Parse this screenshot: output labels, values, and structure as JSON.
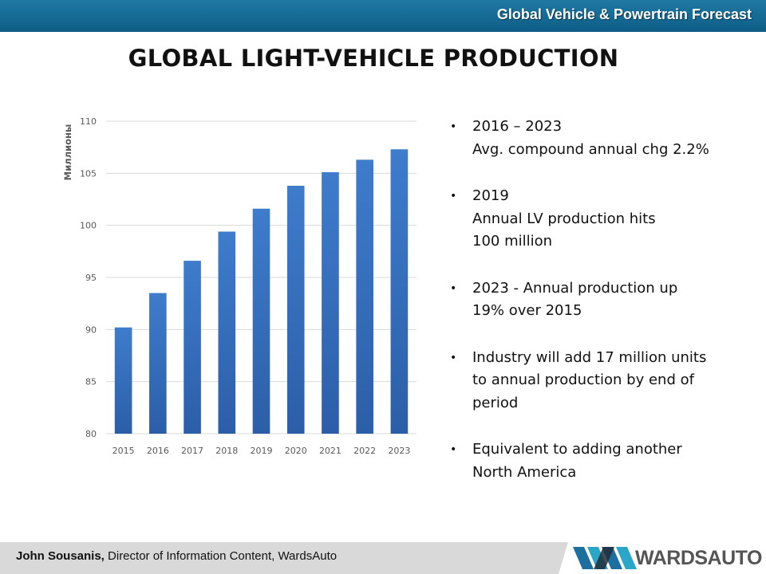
{
  "header": {
    "title": "Global Vehicle & Powertrain Forecast"
  },
  "slide": {
    "title": "GLOBAL LIGHT-VEHICLE PRODUCTION"
  },
  "chart_data": {
    "type": "bar",
    "categories": [
      "2015",
      "2016",
      "2017",
      "2018",
      "2019",
      "2020",
      "2021",
      "2022",
      "2023"
    ],
    "values": [
      90.2,
      93.5,
      96.6,
      99.4,
      101.6,
      103.8,
      105.1,
      106.3,
      107.3
    ],
    "ylabel": "Миллионы",
    "ylim": [
      80,
      110
    ],
    "yticks": [
      80,
      85,
      90,
      95,
      100,
      105,
      110
    ],
    "grid": true,
    "bar_color": "#3a75c4"
  },
  "bullets": [
    {
      "lines": [
        "2016 – 2023",
        "Avg. compound annual chg 2.2%"
      ]
    },
    {
      "lines": [
        "2019",
        "Annual LV production hits",
        "100 million"
      ]
    },
    {
      "lines": [
        "2023 - Annual production up",
        "19% over 2015"
      ]
    },
    {
      "lines": [
        "Industry will add 17 million units",
        "to annual production by end of",
        "period"
      ]
    },
    {
      "lines": [
        "Equivalent to adding another",
        "North America"
      ]
    }
  ],
  "footer": {
    "name": "John Sousanis,",
    "role": " Director of Information Content, WardsAuto"
  },
  "logo": {
    "text": "WARDSAUTO",
    "icon": "wardsauto-logo-icon"
  },
  "colors": {
    "header_bg": "#0d5d86",
    "accent": "#2aa6c9",
    "bar": "#3a75c4",
    "footer_bg": "#d9d9d9"
  }
}
